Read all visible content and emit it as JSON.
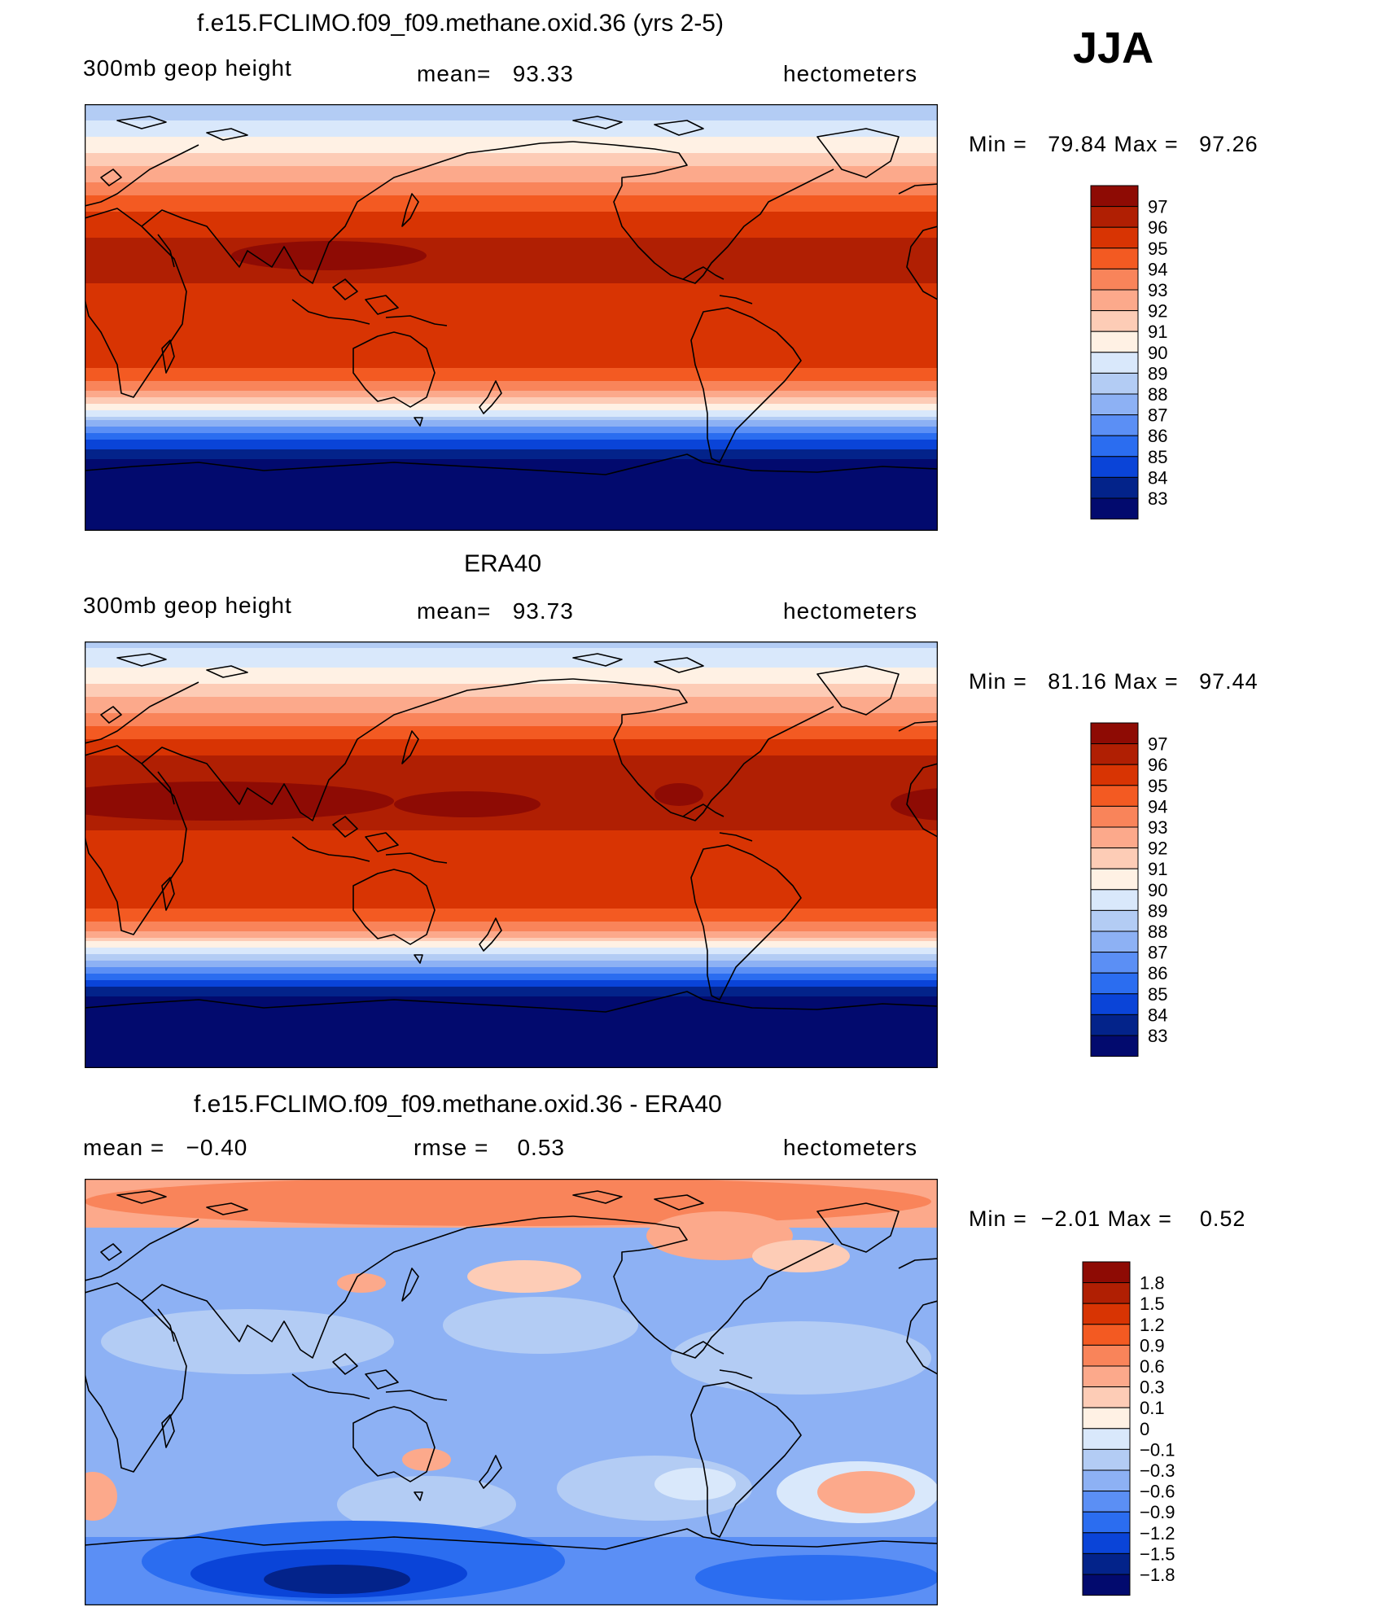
{
  "figure": {
    "season": "JJA"
  },
  "chart_data": [
    {
      "type": "heatmap",
      "id": "model",
      "title": "f.e15.FCLIMO.f09_f09.methane.oxid.36 (yrs 2-5)",
      "left_label": "300mb geop height",
      "center_label": "mean=   93.33",
      "right_label": "hectometers",
      "stat_text": "Min =   79.84 Max =   97.26",
      "min": 79.84,
      "max": 97.26,
      "mean": 93.33,
      "field": "zonal-band",
      "lat_profile": [
        [
          90,
          88.2
        ],
        [
          80,
          89.4
        ],
        [
          70,
          91.0
        ],
        [
          60,
          92.6
        ],
        [
          50,
          94.3
        ],
        [
          40,
          95.7
        ],
        [
          30,
          96.2
        ],
        [
          20,
          96.1
        ],
        [
          10,
          95.9
        ],
        [
          0,
          95.8
        ],
        [
          -10,
          95.8
        ],
        [
          -20,
          95.3
        ],
        [
          -30,
          93.5
        ],
        [
          -35,
          91.5
        ],
        [
          -40,
          89.5
        ],
        [
          -45,
          87.5
        ],
        [
          -50,
          85.5
        ],
        [
          -55,
          84.0
        ],
        [
          -60,
          82.8
        ],
        [
          -70,
          81.5
        ],
        [
          -80,
          80.5
        ],
        [
          -90,
          80.0
        ]
      ],
      "legend": {
        "labels": [
          "97",
          "96",
          "95",
          "94",
          "93",
          "92",
          "91",
          "90",
          "89",
          "88",
          "87",
          "86",
          "85",
          "84",
          "83"
        ],
        "colors": [
          "#8e0b04",
          "#b01f03",
          "#d83403",
          "#f35a22",
          "#f9845a",
          "#fca98b",
          "#fdccb6",
          "#fff1e4",
          "#d9e8fb",
          "#b3ccf4",
          "#8db1f4",
          "#5b8ff5",
          "#2b6df0",
          "#0a44d8",
          "#03238a",
          "#020a6e"
        ]
      }
    },
    {
      "type": "heatmap",
      "id": "obs",
      "title": "ERA40",
      "left_label": "300mb geop height",
      "center_label": "mean=   93.73",
      "right_label": "hectometers",
      "stat_text": "Min =   81.16 Max =   97.44",
      "min": 81.16,
      "max": 97.44,
      "mean": 93.73,
      "field": "zonal-band",
      "lat_profile": [
        [
          90,
          88.6
        ],
        [
          80,
          89.8
        ],
        [
          70,
          91.4
        ],
        [
          60,
          93.0
        ],
        [
          50,
          94.8
        ],
        [
          40,
          96.3
        ],
        [
          30,
          96.7
        ],
        [
          20,
          96.3
        ],
        [
          10,
          96.0
        ],
        [
          0,
          95.9
        ],
        [
          -10,
          95.9
        ],
        [
          -20,
          95.5
        ],
        [
          -30,
          93.8
        ],
        [
          -35,
          91.8
        ],
        [
          -40,
          89.8
        ],
        [
          -45,
          87.8
        ],
        [
          -50,
          85.8
        ],
        [
          -55,
          84.2
        ],
        [
          -60,
          83.0
        ],
        [
          -70,
          82.0
        ],
        [
          -80,
          81.4
        ],
        [
          -90,
          81.2
        ]
      ],
      "legend": {
        "labels": [
          "97",
          "96",
          "95",
          "94",
          "93",
          "92",
          "91",
          "90",
          "89",
          "88",
          "87",
          "86",
          "85",
          "84",
          "83"
        ],
        "colors": [
          "#8e0b04",
          "#b01f03",
          "#d83403",
          "#f35a22",
          "#f9845a",
          "#fca98b",
          "#fdccb6",
          "#fff1e4",
          "#d9e8fb",
          "#b3ccf4",
          "#8db1f4",
          "#5b8ff5",
          "#2b6df0",
          "#0a44d8",
          "#03238a",
          "#020a6e"
        ]
      }
    },
    {
      "type": "heatmap",
      "id": "diff",
      "title": "f.e15.FCLIMO.f09_f09.methane.oxid.36 - ERA40",
      "left_label": "mean =   −0.40",
      "center_label": "rmse =    0.53",
      "right_label": "hectometers",
      "stat_text": "Min =  −2.01 Max =    0.52",
      "min": -2.01,
      "max": 0.52,
      "mean": -0.4,
      "rmse": 0.53,
      "field": "difference",
      "legend": {
        "labels": [
          "1.8",
          "1.5",
          "1.2",
          "0.9",
          "0.6",
          "0.3",
          "0.1",
          "0",
          "−0.1",
          "−0.3",
          "−0.6",
          "−0.9",
          "−1.2",
          "−1.5",
          "−1.8"
        ],
        "colors": [
          "#8e0b04",
          "#b01f03",
          "#d83403",
          "#f35a22",
          "#f9845a",
          "#fca98b",
          "#fdccb6",
          "#fff1e4",
          "#d9e8fb",
          "#b3ccf4",
          "#8db1f4",
          "#5b8ff5",
          "#2b6df0",
          "#0a44d8",
          "#03238a",
          "#020a6e"
        ]
      }
    }
  ]
}
